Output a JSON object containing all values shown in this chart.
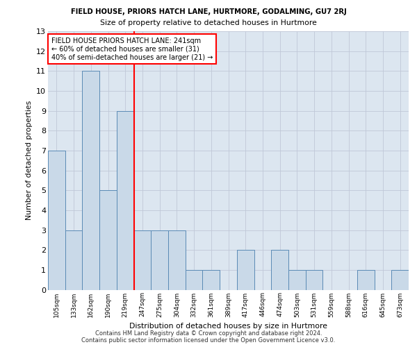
{
  "title": "FIELD HOUSE, PRIORS HATCH LANE, HURTMORE, GODALMING, GU7 2RJ",
  "subtitle": "Size of property relative to detached houses in Hurtmore",
  "xlabel": "Distribution of detached houses by size in Hurtmore",
  "ylabel": "Number of detached properties",
  "categories": [
    "105sqm",
    "133sqm",
    "162sqm",
    "190sqm",
    "219sqm",
    "247sqm",
    "275sqm",
    "304sqm",
    "332sqm",
    "361sqm",
    "389sqm",
    "417sqm",
    "446sqm",
    "474sqm",
    "503sqm",
    "531sqm",
    "559sqm",
    "588sqm",
    "616sqm",
    "645sqm",
    "673sqm"
  ],
  "values": [
    7,
    3,
    11,
    5,
    9,
    3,
    3,
    3,
    1,
    1,
    0,
    2,
    0,
    2,
    1,
    1,
    0,
    0,
    1,
    0,
    1
  ],
  "bar_color": "#c9d9e8",
  "bar_edge_color": "#5a8ab5",
  "grid_color": "#c0c8d8",
  "background_color": "#dce6f0",
  "vline_x_index": 5,
  "vline_color": "red",
  "annotation_text": "FIELD HOUSE PRIORS HATCH LANE: 241sqm\n← 60% of detached houses are smaller (31)\n40% of semi-detached houses are larger (21) →",
  "annotation_box_color": "white",
  "annotation_box_edge": "red",
  "ylim": [
    0,
    13
  ],
  "yticks": [
    0,
    1,
    2,
    3,
    4,
    5,
    6,
    7,
    8,
    9,
    10,
    11,
    12,
    13
  ],
  "footer_line1": "Contains HM Land Registry data © Crown copyright and database right 2024.",
  "footer_line2": "Contains public sector information licensed under the Open Government Licence v3.0."
}
